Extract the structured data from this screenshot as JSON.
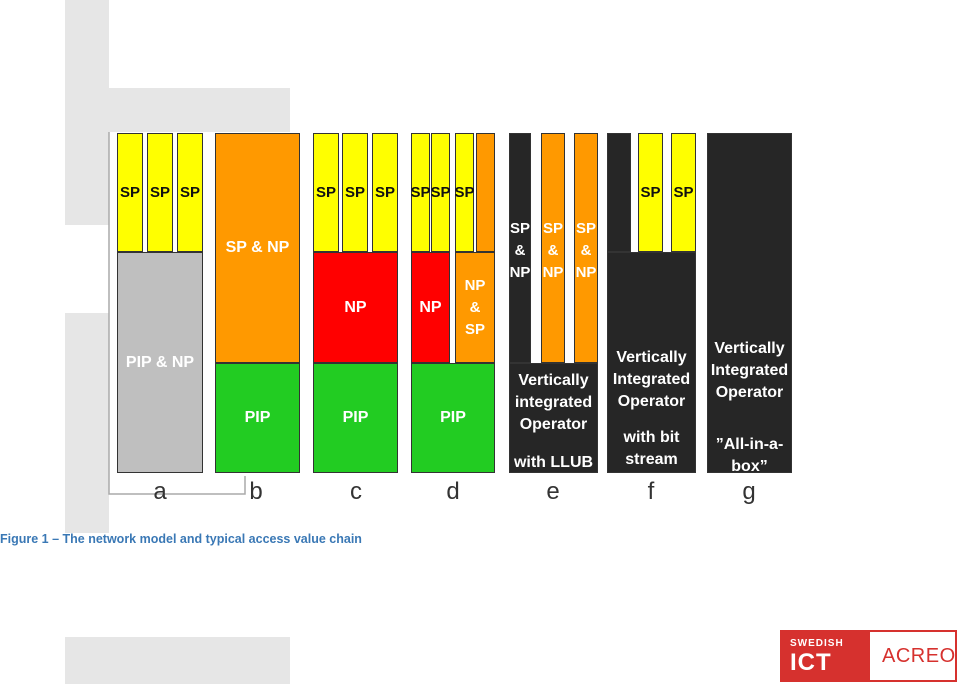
{
  "colors": {
    "sp_yellow": "#ffff00",
    "np_red": "#ff0000",
    "sp_np_orange": "#ff9900",
    "pip_green": "#22cc22",
    "pip_np_gray": "#bfbfbf",
    "operator_dark": "#262626",
    "caption_blue": "#3a78b5",
    "logo_red": "#d6312e"
  },
  "labels": {
    "sp": "SP",
    "pip_np": "PIP & NP",
    "sp_and_np": "SP & NP",
    "np": "NP",
    "pip": "PIP",
    "np_and_sp_stack": "NP\n&\nSP",
    "sp_and_np_stack": "SP\n&\nNP",
    "vertically_integrated_operator_lower": "Vertically\nintegrated\nOperator",
    "with_llub": "with LLUB",
    "vertically_integrated_operator_upper": "Vertically\nIntegrated\nOperator",
    "with_bit_stream_access": "with bit\nstream access",
    "all_in_a_box": "”All-in-a-box”"
  },
  "columns": [
    "a",
    "b",
    "c",
    "d",
    "e",
    "f",
    "g"
  ],
  "caption": "Figure 1 – The network model and typical access value chain",
  "logo": {
    "top_text": "SWEDISH",
    "mid_text": "ICT",
    "right_text": "ACREO"
  }
}
